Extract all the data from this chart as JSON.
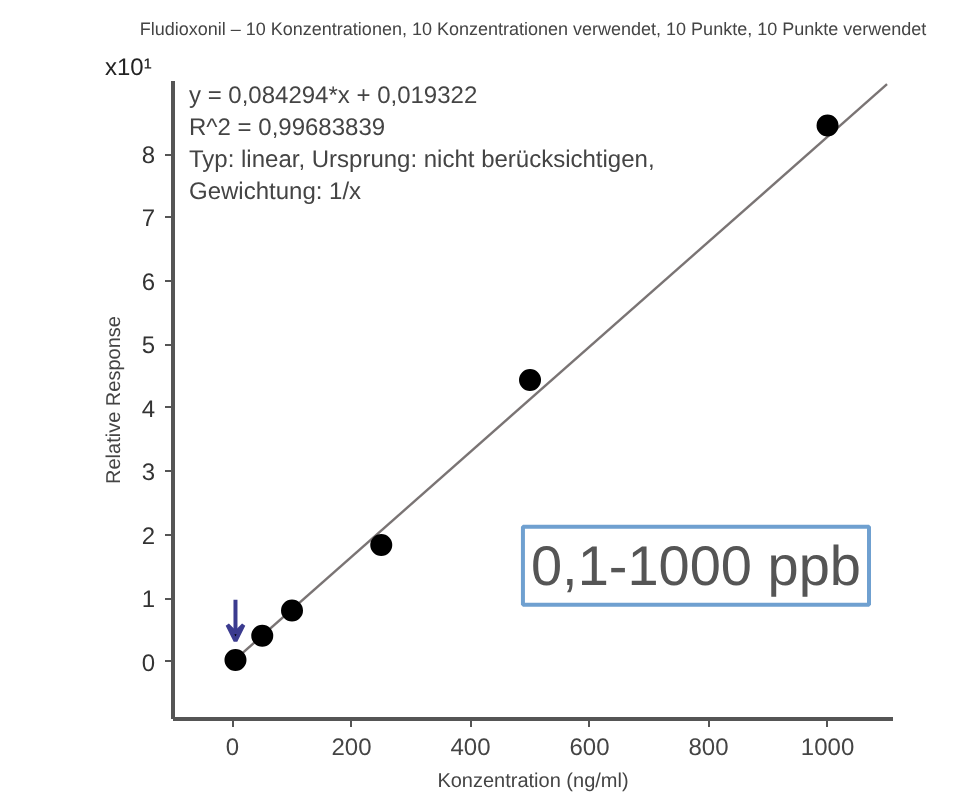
{
  "chart_data": {
    "type": "scatter",
    "title": "Fludioxonil – 10 Konzentrationen, 10 Konzentrationen verwendet, 10 Punkte, 10 Punkte verwendet",
    "xlabel": "Konzentration (ng/ml)",
    "ylabel": "Relative Response",
    "x": [
      5,
      50,
      100,
      250,
      500,
      1000
    ],
    "series": [
      {
        "color": "#000000",
        "values": [
          0.03,
          0.41,
          0.81,
          1.84,
          4.44,
          8.45
        ],
        "marker": "circle"
      },
      {
        "type": "line",
        "color": "#7a7474",
        "x": [
          0,
          1100
        ],
        "values": [
          0.0,
          9.1
        ]
      }
    ],
    "xlim": [
      -100,
      1110
    ],
    "ylim": [
      -0.9,
      9.15
    ],
    "xticks": [
      0,
      200,
      400,
      600,
      800,
      1000
    ],
    "yticks": [
      0,
      1,
      2,
      3,
      4,
      5,
      6,
      7,
      8
    ],
    "annotations": [
      "x10¹",
      "y = 0,084294*x + 0,019322",
      "R^2 = 0,99683839",
      "Typ: linear, Ursprung: nicht berücksichtigen,",
      "Gewichtung: 1/x",
      "0,1-1000 ppb"
    ],
    "grid": false
  }
}
